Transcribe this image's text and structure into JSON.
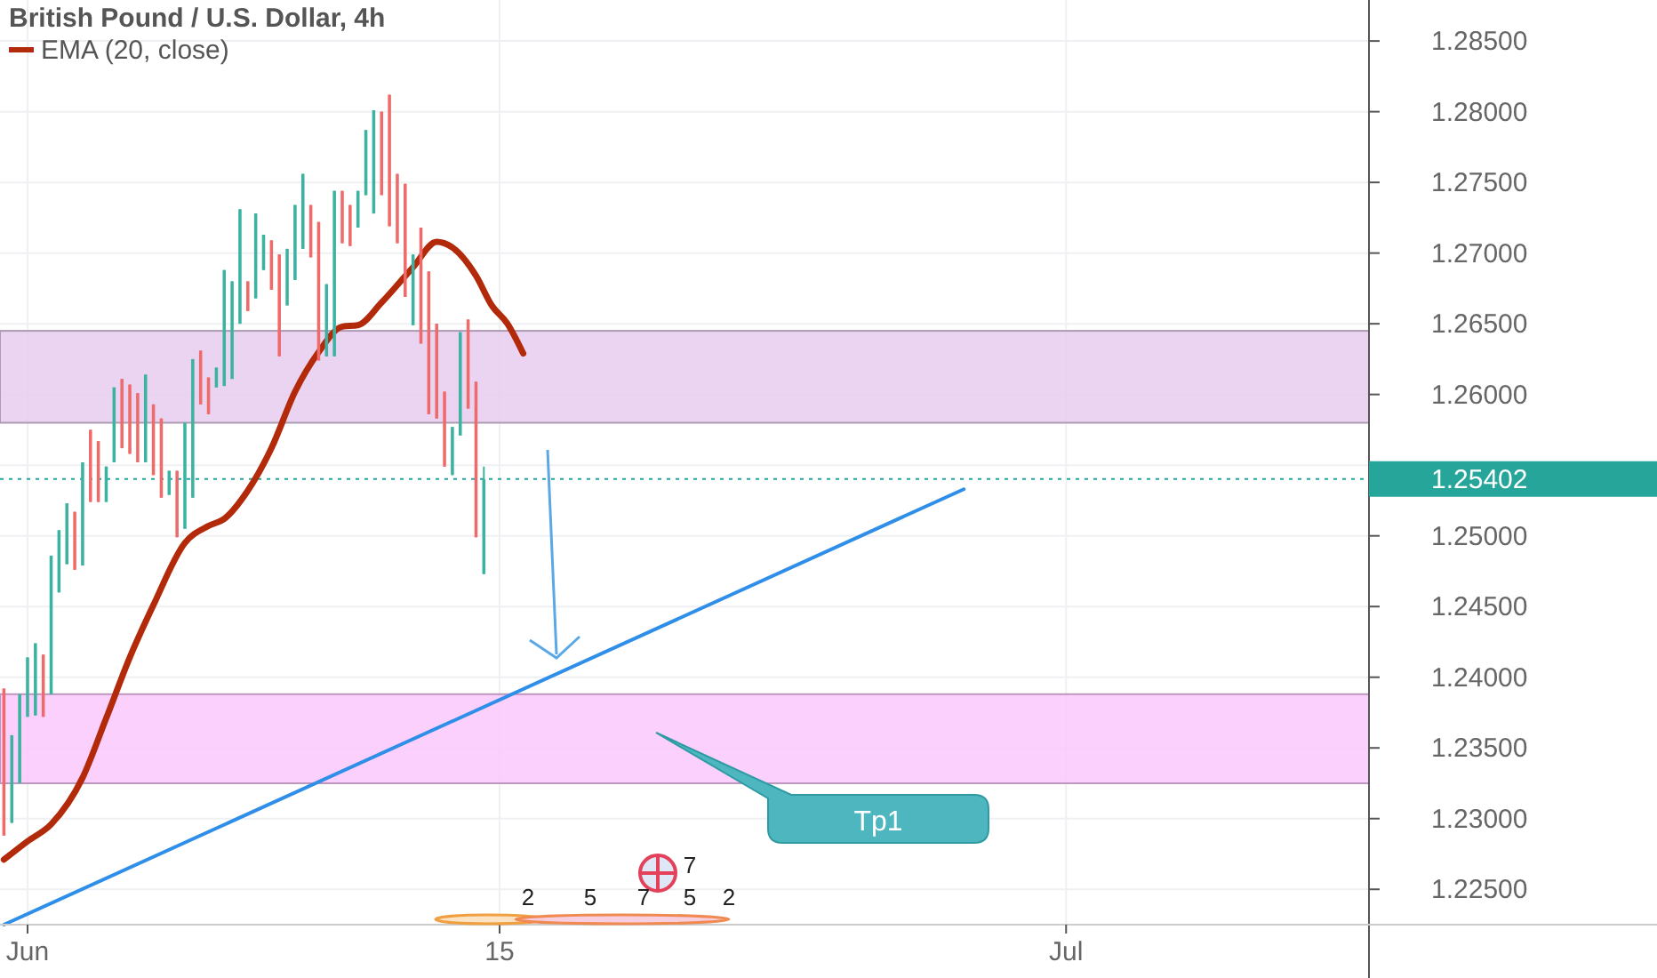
{
  "chart_data": {
    "type": "candlestick",
    "title": "British Pound / U.S. Dollar, 4h",
    "legend": "top left",
    "categories": [
      null,
      null,
      null,
      "Jun",
      null,
      null,
      null,
      null,
      null,
      null,
      null,
      null,
      null,
      null,
      null,
      null,
      null,
      null,
      null,
      null,
      null,
      null,
      null,
      null,
      null,
      null,
      null,
      null,
      null,
      null,
      null,
      null,
      null,
      null,
      null,
      null,
      null,
      null,
      null,
      null,
      null,
      null,
      null,
      null,
      null,
      null,
      null,
      null,
      null,
      null,
      null,
      null,
      null,
      null,
      null,
      null,
      null,
      null,
      null,
      null,
      null,
      null,
      null,
      "15",
      null,
      null,
      null,
      null,
      null,
      null,
      null,
      null,
      null,
      null,
      null,
      null,
      null,
      null,
      null,
      null,
      null,
      null,
      null,
      null,
      null,
      null,
      null,
      null,
      null,
      null,
      null,
      null,
      null,
      null,
      null,
      null,
      null,
      null,
      null,
      null,
      null,
      null,
      null,
      null,
      null,
      null,
      null,
      null,
      null,
      null,
      null,
      null,
      null,
      null,
      null,
      null,
      null,
      null,
      null,
      null,
      null,
      null,
      null,
      null,
      null,
      null,
      null,
      null,
      null,
      null,
      null,
      null,
      null,
      null,
      null,
      "Jul",
      null,
      null,
      null,
      null,
      null,
      null,
      null,
      null,
      null,
      null,
      null,
      null,
      null,
      null,
      null,
      null,
      null,
      null,
      null,
      null,
      null,
      null,
      null,
      null,
      null,
      null,
      null,
      null,
      null,
      null,
      null,
      null,
      null,
      null,
      null,
      null,
      null,
      null
    ],
    "ohlc": [
      [
        1.2392,
        1.2392,
        1.2288,
        1.2288
      ],
      [
        1.2297,
        1.2359,
        1.2297,
        1.2359
      ],
      [
        1.2325,
        1.2388,
        1.2325,
        1.2388
      ],
      [
        1.2372,
        1.2414,
        1.2372,
        1.2414
      ],
      [
        1.2373,
        1.2424,
        1.2373,
        1.2424
      ],
      [
        1.2416,
        1.2416,
        1.2372,
        1.2372
      ],
      [
        1.2388,
        1.2486,
        1.2388,
        1.2486
      ],
      [
        1.246,
        1.2504,
        1.246,
        1.2504
      ],
      [
        1.248,
        1.2523,
        1.248,
        1.2523
      ],
      [
        1.2517,
        1.2517,
        1.2476,
        1.2476
      ],
      [
        1.2479,
        1.2552,
        1.2479,
        1.2552
      ],
      [
        1.2575,
        1.2575,
        1.2524,
        1.2524
      ],
      [
        1.2567,
        1.2567,
        1.2524,
        1.2524
      ],
      [
        1.2524,
        1.2549,
        1.2524,
        1.2549
      ],
      [
        1.2552,
        1.2605,
        1.2552,
        1.2605
      ],
      [
        1.2611,
        1.2611,
        1.2562,
        1.2562
      ],
      [
        1.2607,
        1.2607,
        1.2558,
        1.2558
      ],
      [
        1.2601,
        1.2601,
        1.2552,
        1.2552
      ],
      [
        1.2552,
        1.2614,
        1.2552,
        1.2614
      ],
      [
        1.2593,
        1.2593,
        1.2543,
        1.2543
      ],
      [
        1.2583,
        1.2583,
        1.2527,
        1.2527
      ],
      [
        1.2529,
        1.2546,
        1.2529,
        1.2546
      ],
      [
        1.2546,
        1.2546,
        1.2499,
        1.2499
      ],
      [
        1.2505,
        1.258,
        1.2505,
        1.258
      ],
      [
        1.2527,
        1.2625,
        1.2527,
        1.2625
      ],
      [
        1.2631,
        1.2631,
        1.2593,
        1.2593
      ],
      [
        1.2612,
        1.2612,
        1.2586,
        1.2586
      ],
      [
        1.2605,
        1.2619,
        1.2605,
        1.2619
      ],
      [
        1.2606,
        1.2688,
        1.2606,
        1.2688
      ],
      [
        1.2611,
        1.268,
        1.2611,
        1.268
      ],
      [
        1.265,
        1.2731,
        1.265,
        1.2731
      ],
      [
        1.268,
        1.268,
        1.2659,
        1.2659
      ],
      [
        1.2668,
        1.2728,
        1.2668,
        1.2728
      ],
      [
        1.2688,
        1.2713,
        1.2688,
        1.2713
      ],
      [
        1.2709,
        1.2709,
        1.2674,
        1.2674
      ],
      [
        1.2699,
        1.2699,
        1.2627,
        1.2627
      ],
      [
        1.2663,
        1.2703,
        1.2663,
        1.2703
      ],
      [
        1.2681,
        1.2734,
        1.2681,
        1.2734
      ],
      [
        1.2703,
        1.2756,
        1.2703,
        1.2756
      ],
      [
        1.2734,
        1.2734,
        1.2697,
        1.2697
      ],
      [
        1.2722,
        1.2722,
        1.2624,
        1.2624
      ],
      [
        1.2627,
        1.2678,
        1.2627,
        1.2678
      ],
      [
        1.2627,
        1.2744,
        1.2627,
        1.2744
      ],
      [
        1.2744,
        1.2744,
        1.2707,
        1.2707
      ],
      [
        1.2734,
        1.2734,
        1.2705,
        1.2705
      ],
      [
        1.2718,
        1.2744,
        1.2718,
        1.2744
      ],
      [
        1.2741,
        1.2787,
        1.2741,
        1.2787
      ],
      [
        1.2728,
        1.2801,
        1.2728,
        1.2801
      ],
      [
        1.28,
        1.28,
        1.2741,
        1.2741
      ],
      [
        1.2812,
        1.2812,
        1.2719,
        1.2719
      ],
      [
        1.2756,
        1.2756,
        1.2707,
        1.2707
      ],
      [
        1.2749,
        1.2749,
        1.2669,
        1.2669
      ],
      [
        1.2649,
        1.2699,
        1.2649,
        1.2699
      ],
      [
        1.2718,
        1.2718,
        1.2636,
        1.2636
      ],
      [
        1.2687,
        1.2687,
        1.2586,
        1.2586
      ],
      [
        1.265,
        1.265,
        1.2583,
        1.2583
      ],
      [
        1.2602,
        1.2602,
        1.2549,
        1.2549
      ],
      [
        1.2543,
        1.2577,
        1.2543,
        1.2577
      ],
      [
        1.2571,
        1.2644,
        1.2571,
        1.2644
      ],
      [
        1.2653,
        1.2653,
        1.259,
        1.259
      ],
      [
        1.2609,
        1.2609,
        1.2499,
        1.2499
      ],
      [
        1.2473,
        1.2549,
        1.2473,
        1.254
      ],
      null,
      null,
      null,
      null,
      null,
      null,
      null,
      null,
      null,
      null,
      null,
      null,
      null,
      null,
      null,
      null,
      null,
      null,
      null,
      null,
      null,
      null,
      null,
      null,
      null,
      null,
      null,
      null,
      null,
      null,
      null,
      null,
      null,
      null,
      null,
      null,
      null,
      null,
      null,
      null,
      null,
      null,
      null,
      null,
      null,
      null,
      null,
      null,
      null,
      null,
      null,
      null,
      null,
      null,
      null,
      null,
      null,
      null,
      null,
      null,
      null,
      null,
      null,
      null,
      null,
      null,
      null,
      null,
      null,
      null,
      null,
      null,
      null,
      null,
      null,
      null,
      null,
      null,
      null,
      null,
      null,
      null,
      null,
      null,
      null,
      null,
      null,
      null,
      null,
      null,
      null,
      null,
      null,
      null,
      null,
      null,
      null,
      null,
      null,
      null,
      null,
      null,
      null,
      null,
      null,
      null,
      null,
      null,
      null,
      null,
      null,
      null
    ],
    "colors": [
      "#ef6b6b",
      "#3bb3a0",
      "#3bb3a0",
      "#3bb3a0",
      "#3bb3a0",
      "#ef6b6b",
      "#3bb3a0",
      "#3bb3a0",
      "#3bb3a0",
      "#ef6b6b",
      "#3bb3a0",
      "#ef6b6b",
      "#ef6b6b",
      "#3bb3a0",
      "#3bb3a0",
      "#ef6b6b",
      "#ef6b6b",
      "#ef6b6b",
      "#3bb3a0",
      "#ef6b6b",
      "#ef6b6b",
      "#3bb3a0",
      "#ef6b6b",
      "#3bb3a0",
      "#3bb3a0",
      "#ef6b6b",
      "#ef6b6b",
      "#3bb3a0",
      "#3bb3a0",
      "#3bb3a0",
      "#3bb3a0",
      "#ef6b6b",
      "#3bb3a0",
      "#3bb3a0",
      "#ef6b6b",
      "#ef6b6b",
      "#3bb3a0",
      "#3bb3a0",
      "#3bb3a0",
      "#ef6b6b",
      "#ef6b6b",
      "#3bb3a0",
      "#3bb3a0",
      "#ef6b6b",
      "#ef6b6b",
      "#3bb3a0",
      "#3bb3a0",
      "#3bb3a0",
      "#ef6b6b",
      "#ef6b6b",
      "#ef6b6b",
      "#ef6b6b",
      "#3bb3a0",
      "#ef6b6b",
      "#ef6b6b",
      "#ef6b6b",
      "#ef6b6b",
      "#3bb3a0",
      "#3bb3a0",
      "#ef6b6b",
      "#ef6b6b",
      "#3bb3a0",
      null,
      null,
      null,
      null,
      null,
      null,
      null,
      null,
      null,
      null,
      null,
      null,
      null,
      null,
      null,
      null,
      null,
      null,
      null,
      null,
      null,
      null,
      null,
      null,
      null,
      null,
      null,
      null,
      null,
      null,
      null,
      null,
      null,
      null,
      null,
      null,
      null,
      null,
      null,
      null,
      null,
      null,
      null,
      null,
      null,
      null,
      null,
      null,
      null,
      null,
      null,
      null,
      null,
      null,
      null,
      null,
      null,
      null,
      null,
      null,
      null,
      null,
      null,
      null,
      null,
      null,
      null,
      null,
      null,
      null,
      null,
      null,
      null,
      null,
      null,
      null,
      null,
      null,
      null,
      null,
      null,
      null,
      null,
      null,
      null,
      null,
      null,
      null,
      null,
      null,
      null,
      null,
      null,
      null,
      null,
      null,
      null,
      null,
      null,
      null,
      null,
      null,
      null,
      null,
      null,
      null,
      null,
      null,
      null,
      null,
      null,
      null
    ],
    "series": [
      {
        "type": "line",
        "name": "EMA (20, close)",
        "color": "#b22a0a",
        "values": [
          1.2271,
          null,
          null,
          1.2284,
          null,
          null,
          1.2296,
          null,
          null,
          null,
          1.2329,
          null,
          null,
          1.2371,
          null,
          null,
          1.2414,
          null,
          null,
          1.2451,
          null,
          null,
          null,
          1.2495,
          null,
          null,
          1.2507,
          null,
          1.2512,
          null,
          null,
          1.2532,
          null,
          null,
          1.2562,
          null,
          null,
          1.2602,
          null,
          null,
          1.263,
          null,
          null,
          1.2648,
          null,
          1.2649,
          null,
          null,
          1.2665,
          null,
          null,
          null,
          1.269,
          null,
          null,
          1.2708,
          null,
          1.2704,
          null,
          null,
          1.2684,
          null,
          1.2663,
          null,
          1.265,
          null,
          1.2629,
          null,
          null,
          null,
          null,
          null,
          null,
          null,
          null,
          null,
          null,
          null,
          null,
          null,
          null,
          null,
          null,
          null,
          null,
          null,
          null,
          null,
          null,
          null,
          null,
          null,
          null,
          null,
          null,
          null,
          null,
          null,
          null,
          null,
          null,
          null,
          null,
          null,
          null,
          null,
          null,
          null,
          null,
          null,
          null,
          null,
          null,
          null,
          null,
          null,
          null,
          null,
          null,
          null,
          null,
          null,
          null,
          null,
          null,
          null,
          null,
          null,
          null,
          null,
          null,
          null,
          null,
          null,
          null,
          null,
          null,
          null,
          null,
          null,
          null,
          null,
          null,
          null,
          null,
          null,
          null,
          null,
          null,
          null,
          null,
          null,
          null,
          null,
          null,
          null,
          null,
          null,
          null,
          null,
          null,
          null,
          null,
          null,
          null,
          null,
          null,
          null,
          null,
          null,
          null,
          null,
          null,
          null
        ]
      },
      {
        "type": "line",
        "color": "#2f8fe8",
        "values": [
          1.2225,
          null,
          null,
          null,
          null,
          null,
          null,
          null,
          null,
          null,
          null,
          null,
          null,
          null,
          null,
          null,
          null,
          null,
          null,
          null,
          null,
          null,
          null,
          null,
          null,
          null,
          null,
          null,
          null,
          null,
          null,
          null,
          null,
          null,
          null,
          null,
          null,
          null,
          null,
          null,
          null,
          null,
          null,
          null,
          null,
          null,
          null,
          null,
          null,
          null,
          null,
          null,
          null,
          null,
          null,
          null,
          null,
          null,
          null,
          null,
          null,
          null,
          null,
          null,
          null,
          null,
          null,
          null,
          null,
          null,
          null,
          null,
          null,
          null,
          null,
          null,
          null,
          null,
          null,
          null,
          null,
          null,
          null,
          null,
          null,
          null,
          null,
          null,
          null,
          null,
          null,
          null,
          null,
          null,
          null,
          null,
          null,
          null,
          null,
          null,
          null,
          null,
          null,
          null,
          null,
          null,
          null,
          null,
          null,
          null,
          null,
          null,
          null,
          null,
          null,
          null,
          null,
          null,
          null,
          null,
          null,
          null,
          1.2533,
          null,
          null,
          null,
          null,
          null,
          null,
          null,
          null,
          null,
          null,
          null,
          null,
          null,
          null,
          null,
          null,
          null,
          null,
          null,
          null,
          null,
          null,
          null,
          null,
          null,
          null,
          null,
          null,
          null,
          null,
          null,
          null,
          null,
          null,
          null,
          null,
          null,
          null,
          null,
          null,
          null,
          null,
          null,
          null,
          null,
          null,
          null,
          null,
          null,
          null,
          null
        ]
      }
    ],
    "bands": [
      {
        "axis": "y",
        "from": 1.258,
        "to": 1.2645,
        "color": "#e6cdee"
      },
      {
        "axis": "y",
        "from": 1.2325,
        "to": 1.2388,
        "color": "#fbc8fb"
      }
    ],
    "ref_lines": [
      {
        "axis": "y",
        "value": 1.25402,
        "label": "1.25402",
        "color": "#26a69a",
        "line_style": "dotted"
      }
    ],
    "annotations": [
      "Tp1",
      "2",
      "5",
      "7",
      "5",
      "2",
      "7"
    ],
    "ylim": [
      1.2225,
      1.2879
    ],
    "yticks": [
      {
        "value": 1.225,
        "label": "1.22500"
      },
      {
        "value": 1.23,
        "label": "1.23000"
      },
      {
        "value": 1.235,
        "label": "1.23500"
      },
      {
        "value": 1.24,
        "label": "1.24000"
      },
      {
        "value": 1.245,
        "label": "1.24500"
      },
      {
        "value": 1.25,
        "label": "1.25000"
      },
      {
        "value": 1.255,
        "label": null
      },
      {
        "value": 1.26,
        "label": "1.26000"
      },
      {
        "value": 1.265,
        "label": "1.26500"
      },
      {
        "value": 1.27,
        "label": "1.27000"
      },
      {
        "value": 1.275,
        "label": "1.27500"
      },
      {
        "value": 1.28,
        "label": "1.28000"
      },
      {
        "value": 1.285,
        "label": "1.28500"
      }
    ],
    "grid": true
  }
}
